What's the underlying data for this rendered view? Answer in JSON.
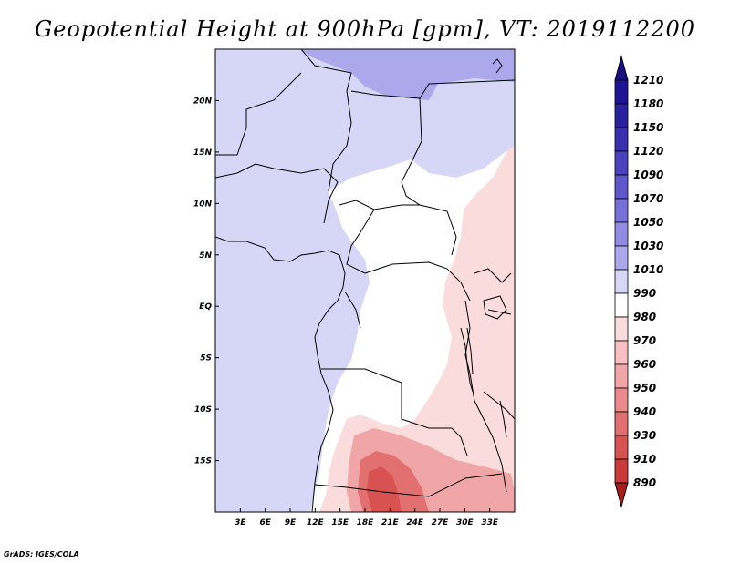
{
  "title": "Geopotential Height at 900hPa [gpm], VT: 2019112200",
  "credit": "GrADS: IGES/COLA",
  "map": {
    "projection": "lat-lon",
    "lon_range": [
      0,
      36
    ],
    "lat_range": [
      -20,
      25
    ],
    "lon_ticks": [
      {
        "value": 3,
        "label": "3E"
      },
      {
        "value": 6,
        "label": "6E"
      },
      {
        "value": 9,
        "label": "9E"
      },
      {
        "value": 12,
        "label": "12E"
      },
      {
        "value": 15,
        "label": "15E"
      },
      {
        "value": 18,
        "label": "18E"
      },
      {
        "value": 21,
        "label": "21E"
      },
      {
        "value": 24,
        "label": "24E"
      },
      {
        "value": 27,
        "label": "27E"
      },
      {
        "value": 30,
        "label": "30E"
      },
      {
        "value": 33,
        "label": "33E"
      }
    ],
    "lat_ticks": [
      {
        "value": 20,
        "label": "20N"
      },
      {
        "value": 15,
        "label": "15N"
      },
      {
        "value": 10,
        "label": "10N"
      },
      {
        "value": 5,
        "label": "5N"
      },
      {
        "value": 0,
        "label": "EQ"
      },
      {
        "value": -5,
        "label": "5S"
      },
      {
        "value": -10,
        "label": "10S"
      },
      {
        "value": -15,
        "label": "15S"
      }
    ]
  },
  "colorbar": {
    "levels": [
      {
        "label": "1210",
        "color": "#1e1496"
      },
      {
        "label": "1180",
        "color": "#28229f"
      },
      {
        "label": "1150",
        "color": "#3830ae"
      },
      {
        "label": "1120",
        "color": "#4a42be"
      },
      {
        "label": "1090",
        "color": "#5e58cc"
      },
      {
        "label": "1070",
        "color": "#7670d8"
      },
      {
        "label": "1050",
        "color": "#908ce2"
      },
      {
        "label": "1030",
        "color": "#aca8ec"
      },
      {
        "label": "1010",
        "color": "#d6d6f6"
      },
      {
        "label": "990",
        "color": "#ffffff"
      },
      {
        "label": "980",
        "color": "#fbdcdc"
      },
      {
        "label": "970",
        "color": "#f6c0c0"
      },
      {
        "label": "960",
        "color": "#f0a6a6"
      },
      {
        "label": "950",
        "color": "#ea8a8a"
      },
      {
        "label": "940",
        "color": "#e27070"
      },
      {
        "label": "930",
        "color": "#d85252"
      },
      {
        "label": "910",
        "color": "#ca3a3a"
      },
      {
        "label": "890",
        "color": "#b82424"
      }
    ],
    "top_color": "#1a1080",
    "bottom_color": "#a81c1c"
  },
  "fill_regions": [
    {
      "name": "north-purple-band",
      "value_range": "1030-1050",
      "color": "#aca8ec"
    },
    {
      "name": "west-atlantic-lavender",
      "value_range": "1010-1030",
      "color": "#d6d6f6"
    },
    {
      "name": "central-white",
      "value_range": "990-1010",
      "color": "#ffffff"
    },
    {
      "name": "east-pink",
      "value_range": "980-990",
      "color": "#fbdcdc"
    },
    {
      "name": "southern-red-low",
      "value_range": "940-970",
      "color": "#e27070"
    }
  ]
}
